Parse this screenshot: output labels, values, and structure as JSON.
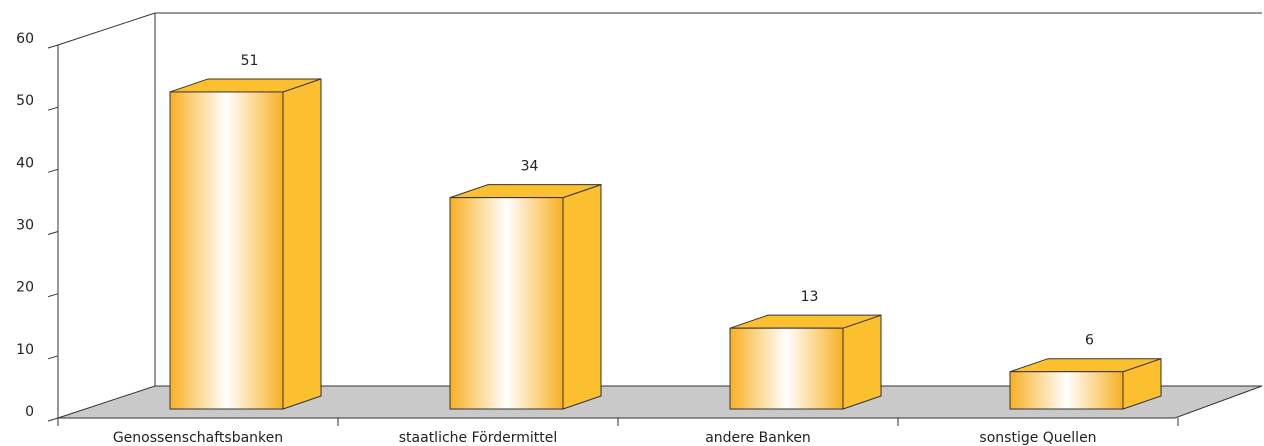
{
  "chart_data": {
    "type": "bar3d",
    "categories": [
      "Genossenschaftsbanken",
      "staatliche Fördermittel",
      "andere Banken",
      "sonstige Quellen"
    ],
    "values": [
      51,
      34,
      13,
      6
    ],
    "ylim": [
      0,
      60
    ],
    "yticks": [
      0,
      10,
      20,
      30,
      40,
      50,
      60
    ],
    "color": "#fbbf2f"
  }
}
